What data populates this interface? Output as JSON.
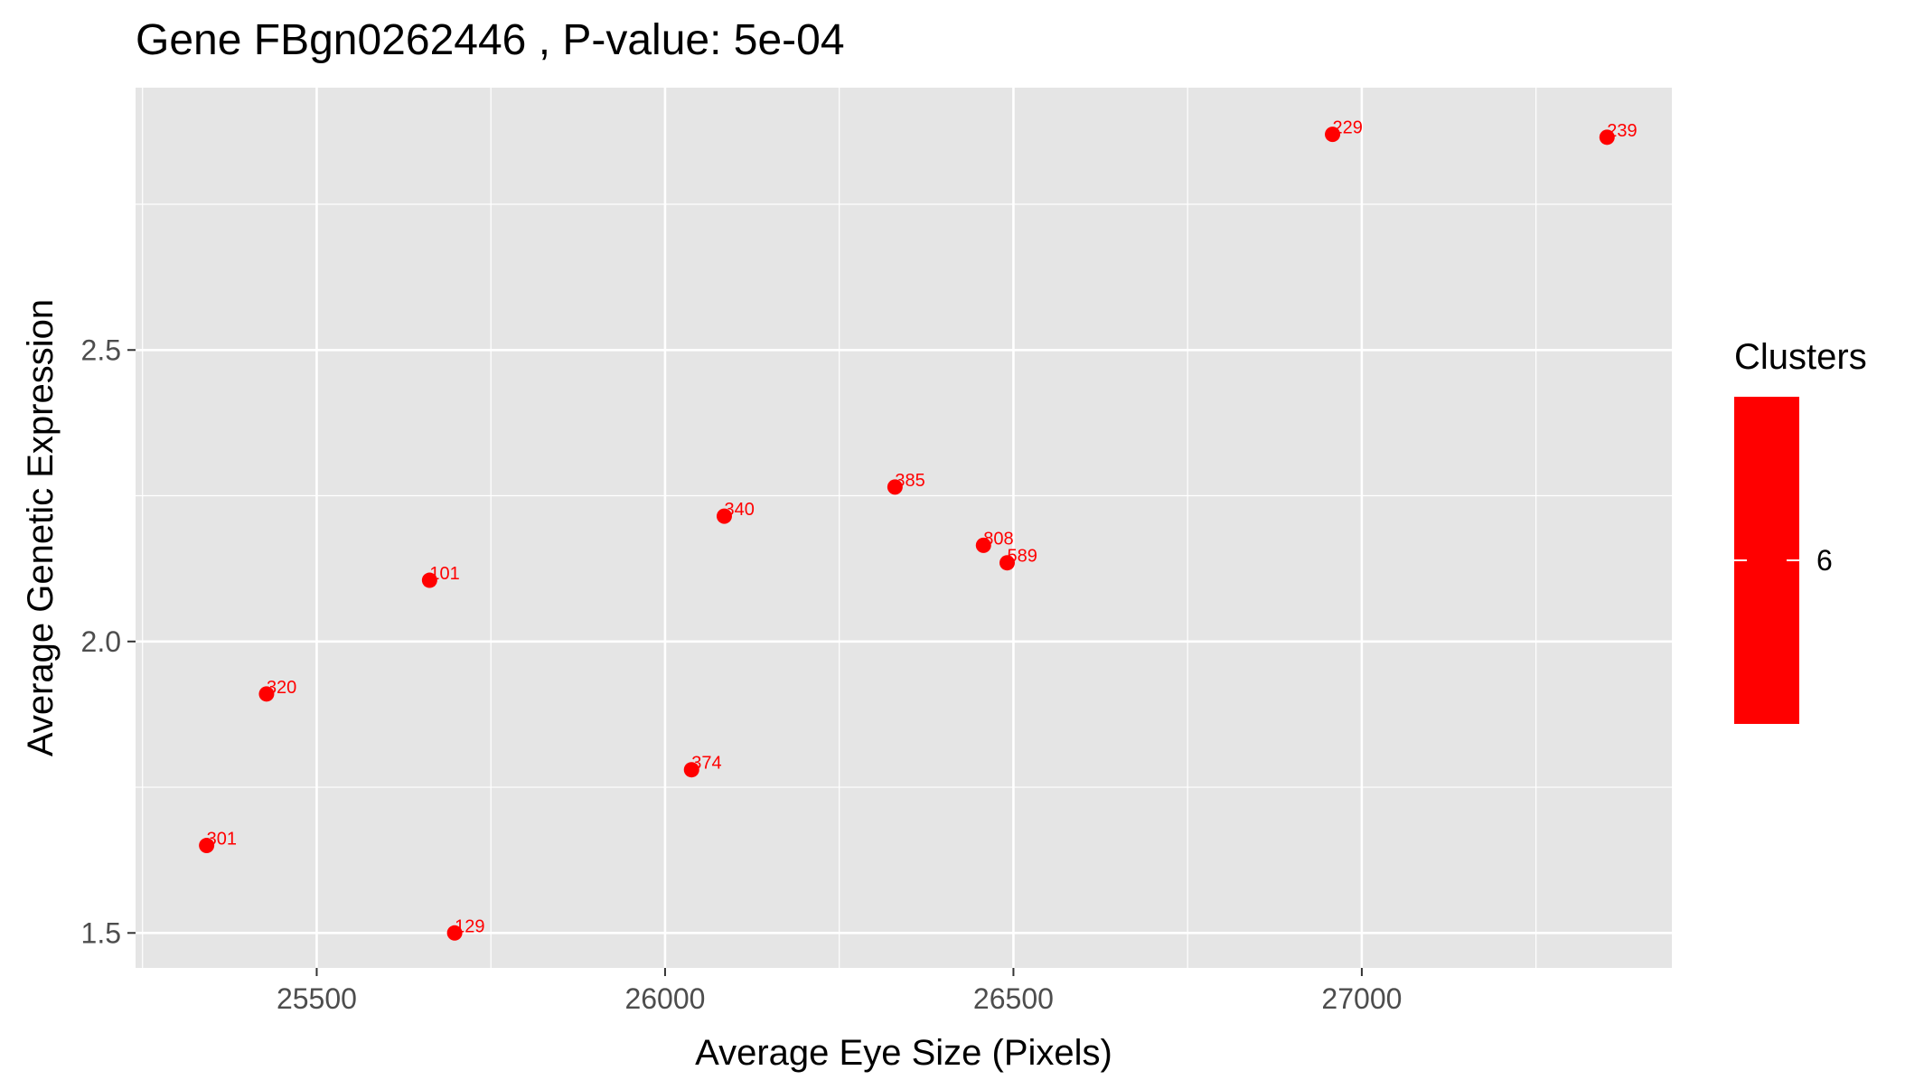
{
  "chart_data": {
    "type": "scatter",
    "title": "Gene FBgn0262446 , P-value: 5e-04",
    "xlabel": "Average Eye Size (Pixels)",
    "ylabel": "Average Genetic Expression",
    "xlim": [
      25240,
      27445
    ],
    "ylim": [
      1.44,
      2.95
    ],
    "x_ticks": [
      25500,
      26000,
      26500,
      27000
    ],
    "x_tick_labels": [
      "25500",
      "26000",
      "26500",
      "27000"
    ],
    "y_ticks": [
      1.5,
      2.0,
      2.5
    ],
    "y_tick_labels": [
      "1.5",
      "2.0",
      "2.5"
    ],
    "grid": true,
    "legend": {
      "title": "Clusters",
      "labels": [
        "6"
      ],
      "placement": "right"
    },
    "point_color": "#ff0000",
    "panel_background": "#e5e5e5",
    "points": [
      {
        "label": "229",
        "x": 26958,
        "y": 2.87
      },
      {
        "label": "239",
        "x": 27352,
        "y": 2.865
      },
      {
        "label": "385",
        "x": 26330,
        "y": 2.265
      },
      {
        "label": "340",
        "x": 26085,
        "y": 2.215
      },
      {
        "label": "808",
        "x": 26457,
        "y": 2.165
      },
      {
        "label": "589",
        "x": 26491,
        "y": 2.135
      },
      {
        "label": "101",
        "x": 25662,
        "y": 2.105
      },
      {
        "label": "320",
        "x": 25428,
        "y": 1.91
      },
      {
        "label": "374",
        "x": 26038,
        "y": 1.78
      },
      {
        "label": "301",
        "x": 25342,
        "y": 1.65
      },
      {
        "label": "129",
        "x": 25698,
        "y": 1.5
      }
    ]
  }
}
